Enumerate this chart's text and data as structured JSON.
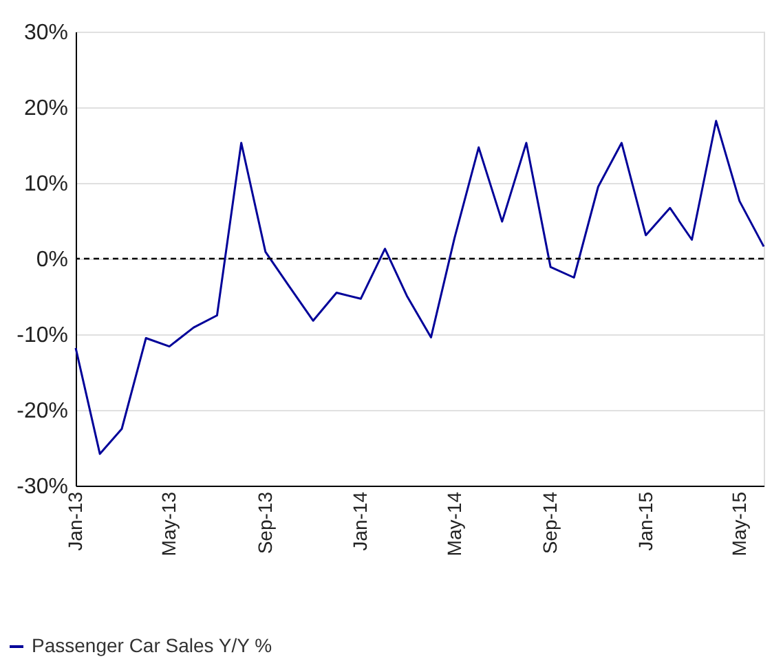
{
  "chart_data": {
    "type": "line",
    "x": [
      "2013-01",
      "2013-02",
      "2013-03",
      "2013-04",
      "2013-05",
      "2013-06",
      "2013-07",
      "2013-08",
      "2013-09",
      "2013-10",
      "2013-11",
      "2013-12",
      "2014-01",
      "2014-02",
      "2014-03",
      "2014-04",
      "2014-05",
      "2014-06",
      "2014-07",
      "2014-08",
      "2014-09",
      "2014-10",
      "2014-11",
      "2014-12",
      "2015-01",
      "2015-02",
      "2015-03",
      "2015-04",
      "2015-05",
      "2015-06"
    ],
    "series": [
      {
        "name": "Passenger Car Sales Y/Y %",
        "color": "#000099",
        "values": [
          -11.8,
          -25.8,
          -22.5,
          -10.5,
          -11.6,
          -9.1,
          -7.5,
          15.3,
          0.9,
          -3.6,
          -8.2,
          -4.5,
          -5.3,
          1.3,
          -4.9,
          -10.4,
          2.7,
          14.7,
          4.9,
          15.3,
          -1.1,
          -2.5,
          9.5,
          15.3,
          3.1,
          6.7,
          2.5,
          18.2,
          7.6,
          1.6
        ]
      }
    ],
    "xlim": [
      "2013-01",
      "2015-06"
    ],
    "xticks": [
      {
        "value": "2013-01",
        "label": "Jan-13"
      },
      {
        "value": "2013-05",
        "label": "May-13"
      },
      {
        "value": "2013-09",
        "label": "Sep-13"
      },
      {
        "value": "2014-01",
        "label": "Jan-14"
      },
      {
        "value": "2014-05",
        "label": "May-14"
      },
      {
        "value": "2014-09",
        "label": "Sep-14"
      },
      {
        "value": "2015-01",
        "label": "Jan-15"
      },
      {
        "value": "2015-05",
        "label": "May-15"
      }
    ],
    "ylim": [
      -30,
      30
    ],
    "yticks": [
      {
        "value": -30,
        "label": "-30%"
      },
      {
        "value": -20,
        "label": "-20%"
      },
      {
        "value": -10,
        "label": "-10%"
      },
      {
        "value": 0,
        "label": "0%"
      },
      {
        "value": 10,
        "label": "10%"
      },
      {
        "value": 20,
        "label": "20%"
      },
      {
        "value": 30,
        "label": "30%"
      }
    ],
    "ref_lines": [
      {
        "axis": "y",
        "value": 0,
        "color": "#000000",
        "line_style": "dashed"
      }
    ],
    "grid": "y",
    "legend": "bottom left",
    "marker": "none",
    "line_style": "solid"
  }
}
